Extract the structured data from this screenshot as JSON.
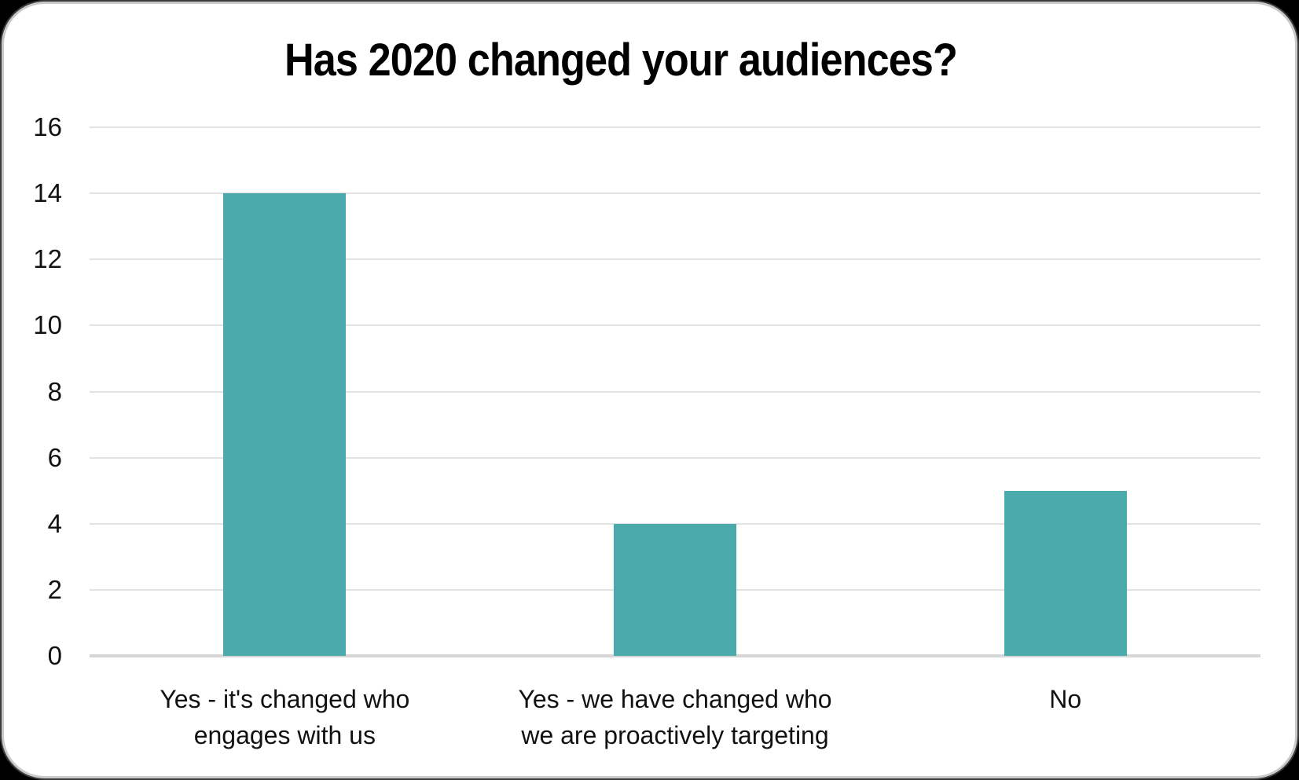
{
  "chart_data": {
    "type": "bar",
    "title": "Has 2020 changed your audiences?",
    "categories": [
      "Yes - it's changed who\nengages with us",
      "Yes - we have changed who\nwe are proactively targeting",
      "No"
    ],
    "values": [
      14,
      4,
      5
    ],
    "xlabel": "",
    "ylabel": "",
    "ylim": [
      0,
      16
    ],
    "yticks": [
      0,
      2,
      4,
      6,
      8,
      10,
      12,
      14,
      16
    ],
    "grid": true,
    "legend": "none",
    "bar_color": "#4BABAC",
    "gridline_color": "#e2e2e2",
    "axis_line_color": "#d6d6d6",
    "text_color": "#111111",
    "card_background": "#ffffff",
    "card_border_color": "#c9c9c9",
    "page_background": "#000000"
  }
}
